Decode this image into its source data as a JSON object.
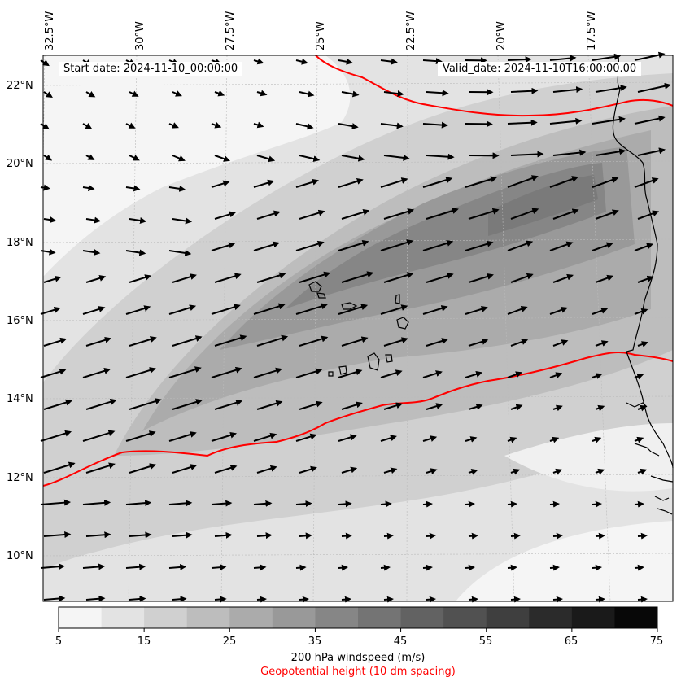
{
  "map": {
    "start_date_label": "Start date: 2024-11-10_00:00:00",
    "valid_date_label": "Valid_date: 2024-11-10T16:00:00.00",
    "longitude_labels": [
      "32.5°W",
      "30°W",
      "27.5°W",
      "25°W",
      "22.5°W",
      "20°W",
      "17.5°W"
    ],
    "latitude_labels": [
      "22°N",
      "20°N",
      "18°N",
      "16°N",
      "14°N",
      "12°N",
      "10°N"
    ],
    "contour_color": "#ff0000",
    "arrow_color": "#000000",
    "coastline_color": "#000000"
  },
  "colorbar": {
    "tick_labels": [
      "5",
      "15",
      "25",
      "35",
      "45",
      "55",
      "65",
      "75"
    ],
    "bin_colors": [
      "#f5f5f5",
      "#e3e3e3",
      "#d0d0d0",
      "#bdbdbd",
      "#ababab",
      "#999999",
      "#868686",
      "#747474",
      "#626262",
      "#515151",
      "#3f3f3f",
      "#2b2b2b",
      "#1a1a1a",
      "#080808"
    ],
    "title": "200 hPa windspeed (m/s)",
    "subtitle": "Geopotential height (10 dm spacing)",
    "subtitle_color": "#ff0000"
  }
}
